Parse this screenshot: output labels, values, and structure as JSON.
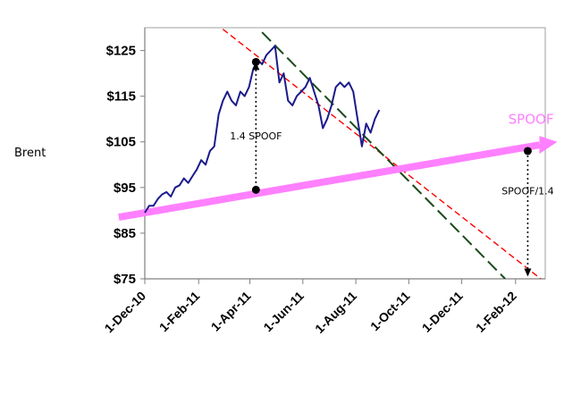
{
  "chart_data": {
    "type": "line",
    "ylabel": "Brent",
    "y_tick_labels": [
      "$75",
      "$85",
      "$95",
      "$105",
      "$115",
      "$125"
    ],
    "y_ticks": [
      75,
      85,
      95,
      105,
      115,
      125
    ],
    "ylim": [
      75,
      130
    ],
    "x_tick_labels": [
      "1-Dec-10",
      "1-Feb-11",
      "1-Apr-11",
      "1-Jun-11",
      "1-Aug-11",
      "1-Oct-11",
      "1-Dec-11",
      "1-Feb-12"
    ],
    "x_ticks": [
      "2010-12-01",
      "2011-02-01",
      "2011-04-01",
      "2011-06-01",
      "2011-08-01",
      "2011-10-01",
      "2011-12-01",
      "2012-02-01"
    ],
    "xlim": [
      "2010-12-01",
      "2012-03-01"
    ],
    "grid": false,
    "series": [
      {
        "name": "",
        "style": "line",
        "color": "#1a1a8c",
        "points": [
          [
            "2010-12-01",
            89.5
          ],
          [
            "2010-12-06",
            91
          ],
          [
            "2010-12-11",
            91
          ],
          [
            "2010-12-16",
            92.5
          ],
          [
            "2010-12-21",
            93.5
          ],
          [
            "2010-12-26",
            94
          ],
          [
            "2010-12-31",
            93
          ],
          [
            "2011-01-05",
            95
          ],
          [
            "2011-01-10",
            95.5
          ],
          [
            "2011-01-15",
            97
          ],
          [
            "2011-01-20",
            96
          ],
          [
            "2011-01-25",
            97.5
          ],
          [
            "2011-01-30",
            99
          ],
          [
            "2011-02-04",
            101
          ],
          [
            "2011-02-09",
            100
          ],
          [
            "2011-02-14",
            103
          ],
          [
            "2011-02-19",
            104
          ],
          [
            "2011-02-24",
            111
          ],
          [
            "2011-03-01",
            114
          ],
          [
            "2011-03-06",
            116
          ],
          [
            "2011-03-11",
            114
          ],
          [
            "2011-03-16",
            113
          ],
          [
            "2011-03-21",
            116
          ],
          [
            "2011-03-26",
            115
          ],
          [
            "2011-03-31",
            117
          ],
          [
            "2011-04-05",
            121
          ],
          [
            "2011-04-10",
            123
          ],
          [
            "2011-04-15",
            122
          ],
          [
            "2011-04-20",
            124
          ],
          [
            "2011-04-25",
            125
          ],
          [
            "2011-04-30",
            126
          ],
          [
            "2011-05-05",
            118
          ],
          [
            "2011-05-10",
            120
          ],
          [
            "2011-05-15",
            114
          ],
          [
            "2011-05-20",
            113
          ],
          [
            "2011-05-25",
            115
          ],
          [
            "2011-05-30",
            116
          ],
          [
            "2011-06-04",
            117
          ],
          [
            "2011-06-09",
            119
          ],
          [
            "2011-06-14",
            116
          ],
          [
            "2011-06-19",
            113
          ],
          [
            "2011-06-24",
            108
          ],
          [
            "2011-06-29",
            110
          ],
          [
            "2011-07-04",
            113
          ],
          [
            "2011-07-09",
            117
          ],
          [
            "2011-07-14",
            118
          ],
          [
            "2011-07-19",
            117
          ],
          [
            "2011-07-24",
            118
          ],
          [
            "2011-07-29",
            116
          ],
          [
            "2011-08-03",
            110
          ],
          [
            "2011-08-08",
            104
          ],
          [
            "2011-08-13",
            109
          ],
          [
            "2011-08-18",
            107
          ],
          [
            "2011-08-23",
            110
          ],
          [
            "2011-08-28",
            112
          ]
        ]
      },
      {
        "name": "SPOOF",
        "style": "thick-arrow",
        "color": "#ff80ff",
        "points": [
          [
            "2010-11-01",
            88.5
          ],
          [
            "2012-03-20",
            105
          ]
        ]
      },
      {
        "name": "",
        "style": "dashed",
        "color": "#ff0000",
        "points": [
          [
            "2011-02-20",
            131
          ],
          [
            "2012-03-01",
            75
          ]
        ]
      },
      {
        "name": "",
        "style": "long-dashed",
        "color": "#1a4a1a",
        "points": [
          [
            "2011-04-15",
            129
          ],
          [
            "2012-01-20",
            75
          ]
        ]
      }
    ],
    "annotations": [
      {
        "text": "1.4 SPOOF",
        "x": "2011-04-08",
        "from": 94,
        "to": 122.5
      },
      {
        "text": "SPOOF/1.4",
        "x": "2012-02-15",
        "from": 103,
        "to": 75.5
      },
      {
        "text": "SPOOF",
        "series": "SPOOF"
      }
    ],
    "highlight_points": [
      [
        "2011-04-08",
        94.5
      ],
      [
        "2011-04-08",
        122.5
      ],
      [
        "2012-02-15",
        103
      ]
    ]
  }
}
